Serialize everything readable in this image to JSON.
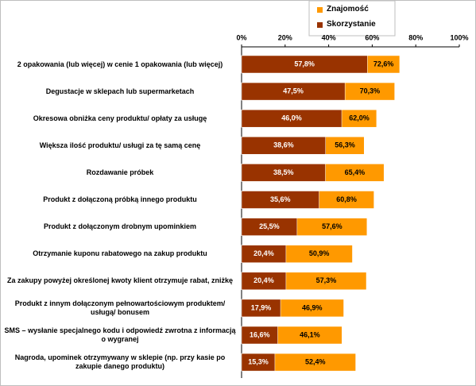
{
  "chart_data": {
    "type": "bar",
    "orientation": "horizontal",
    "overlap": true,
    "categories": [
      "2 opakowania (lub więcej) w cenie 1 opakowania (lub więcej)",
      "Degustacje w sklepach lub supermarketach",
      "Okresowa obniżka ceny produktu/ opłaty za usługę",
      "Większa ilość produktu/ usługi za tę samą cenę",
      "Rozdawanie próbek",
      "Produkt z dołączoną próbką innego produktu",
      "Produkt z dołączonym drobnym upominkiem",
      "Otrzymanie kuponu rabatowego na zakup produktu",
      "Za zakupy powyżej określonej kwoty klient otrzymuje rabat, zniżkę",
      "Produkt z innym dołączonym pełnowartościowym produktem/ usługą/ bonusem",
      "SMS – wysłanie specjalnego kodu i odpowiedź zwrotna z informacją o wygranej",
      "Nagroda, upominek otrzymywany w sklepie (np. przy kasie po zakupie danego produktu)"
    ],
    "series": [
      {
        "name": "Znajomość",
        "color": "#ff9900",
        "values": [
          72.6,
          70.3,
          62.0,
          56.3,
          65.4,
          60.8,
          57.6,
          50.9,
          57.3,
          46.9,
          46.1,
          52.4
        ],
        "value_labels": [
          "72,6%",
          "70,3%",
          "62,0%",
          "56,3%",
          "65,4%",
          "60,8%",
          "57,6%",
          "50,9%",
          "57,3%",
          "46,9%",
          "46,1%",
          "52,4%"
        ]
      },
      {
        "name": "Skorzystanie",
        "color": "#993300",
        "values": [
          57.8,
          47.5,
          46.0,
          38.6,
          38.5,
          35.6,
          25.5,
          20.4,
          20.4,
          17.9,
          16.6,
          15.3
        ],
        "value_labels": [
          "57,8%",
          "47,5%",
          "46,0%",
          "38,6%",
          "38,5%",
          "35,6%",
          "25,5%",
          "20,4%",
          "20,4%",
          "17,9%",
          "16,6%",
          "15,3%"
        ]
      }
    ],
    "xlim": [
      0,
      100
    ],
    "xticks": [
      {
        "value": 0,
        "label": "0%"
      },
      {
        "value": 20,
        "label": "20%"
      },
      {
        "value": 40,
        "label": "40%"
      },
      {
        "value": 60,
        "label": "60%"
      },
      {
        "value": 80,
        "label": "80%"
      },
      {
        "value": 100,
        "label": "100%"
      }
    ],
    "legend": "top"
  }
}
